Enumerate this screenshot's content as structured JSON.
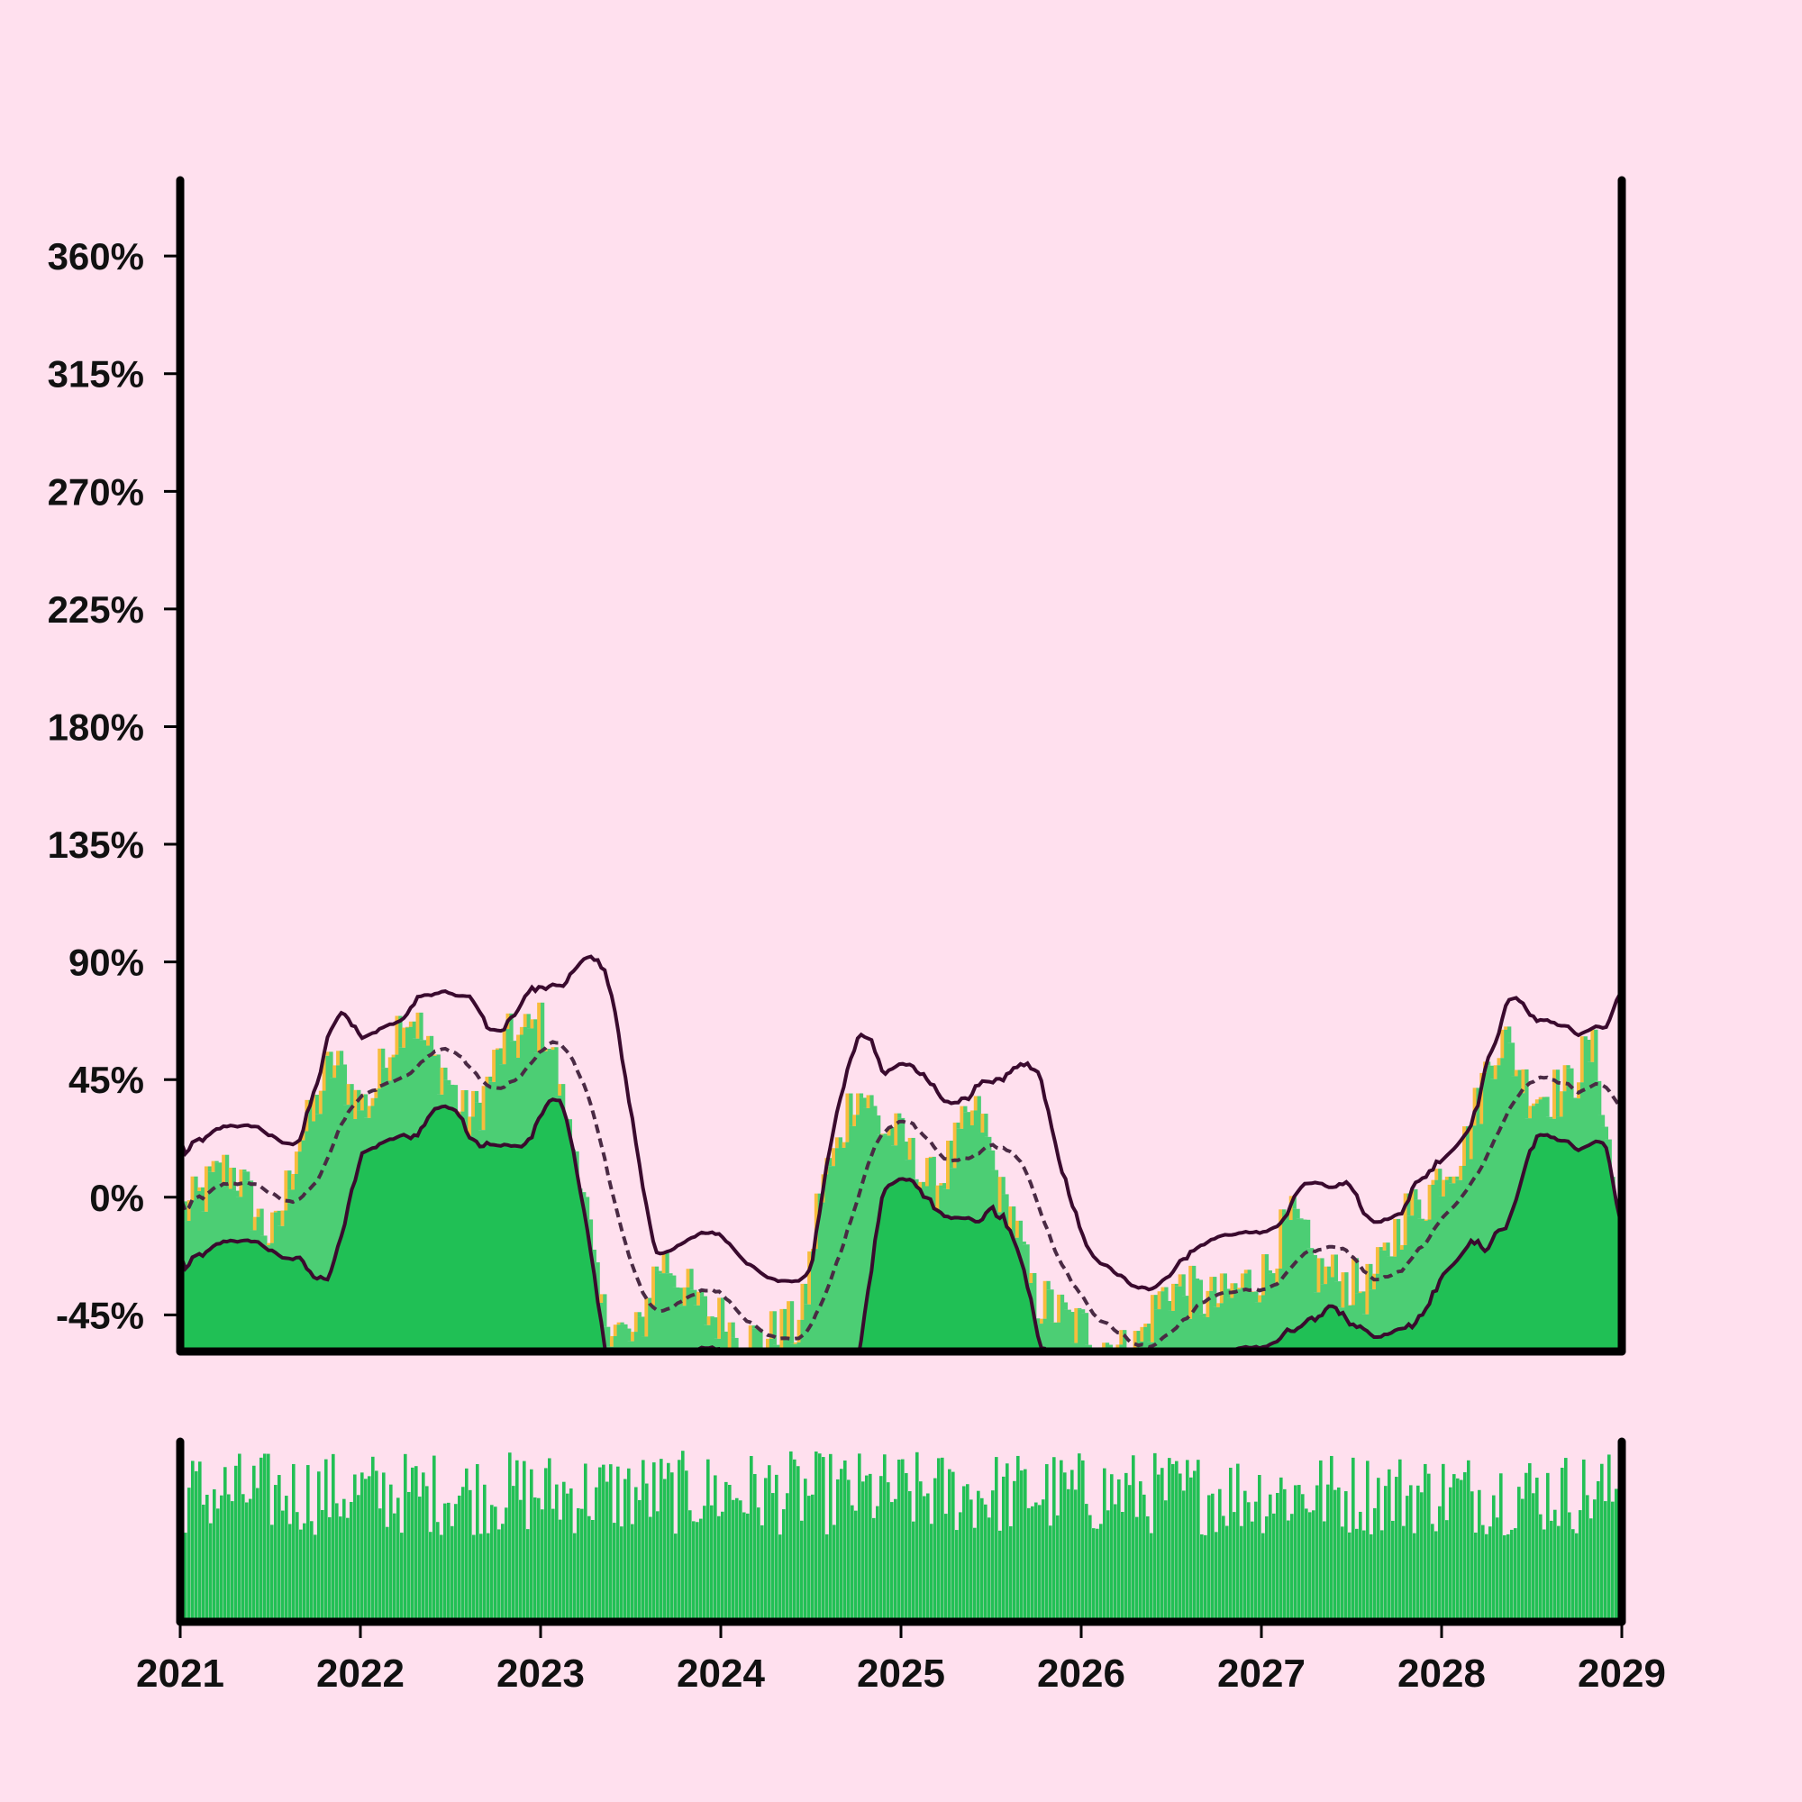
{
  "colors": {
    "background": "#ffe0ee",
    "frame": "#000000",
    "candle_up": "#f7bc3c",
    "candle_down": "#4cce74",
    "band": "#20c055",
    "band_line": "#3a0a2e",
    "mid_line": "#4a2a44",
    "volume": "#22c055"
  },
  "chart_data": [
    {
      "type": "candlestick",
      "title": "",
      "xlabel": "",
      "ylabel": "",
      "x_range": [
        "2021-01",
        "2029-01"
      ],
      "ylim": [
        -59,
        389
      ],
      "y_ticks": [
        {
          "value": 360,
          "label": "360%"
        },
        {
          "value": 315,
          "label": "315%"
        },
        {
          "value": 270,
          "label": "270%"
        },
        {
          "value": 225,
          "label": "225%"
        },
        {
          "value": 180,
          "label": "180%"
        },
        {
          "value": 135,
          "label": "135%"
        },
        {
          "value": 90,
          "label": "90%"
        },
        {
          "value": 45,
          "label": "45%"
        },
        {
          "value": 0,
          "label": "0%"
        },
        {
          "value": -45,
          "label": "-45%"
        }
      ],
      "close_anchors": [
        {
          "t": "2021-01",
          "v": -5
        },
        {
          "t": "2021-04",
          "v": 10
        },
        {
          "t": "2021-07",
          "v": -15
        },
        {
          "t": "2021-09",
          "v": 25
        },
        {
          "t": "2021-11",
          "v": 50
        },
        {
          "t": "2022-01",
          "v": 35
        },
        {
          "t": "2022-04",
          "v": 70
        },
        {
          "t": "2022-06",
          "v": 50
        },
        {
          "t": "2022-08",
          "v": 30
        },
        {
          "t": "2022-11",
          "v": 60
        },
        {
          "t": "2023-01",
          "v": 65
        },
        {
          "t": "2023-03",
          "v": 20
        },
        {
          "t": "2023-05",
          "v": -45
        },
        {
          "t": "2023-07",
          "v": -55
        },
        {
          "t": "2023-09",
          "v": -25
        },
        {
          "t": "2023-12",
          "v": -45
        },
        {
          "t": "2024-03",
          "v": -55
        },
        {
          "t": "2024-06",
          "v": -50
        },
        {
          "t": "2024-08",
          "v": 10
        },
        {
          "t": "2024-10",
          "v": 40
        },
        {
          "t": "2024-12",
          "v": 25
        },
        {
          "t": "2025-03",
          "v": 5
        },
        {
          "t": "2025-06",
          "v": 30
        },
        {
          "t": "2025-08",
          "v": -5
        },
        {
          "t": "2025-10",
          "v": -40
        },
        {
          "t": "2026-01",
          "v": -50
        },
        {
          "t": "2026-04",
          "v": -60
        },
        {
          "t": "2026-07",
          "v": -35
        },
        {
          "t": "2026-10",
          "v": -40
        },
        {
          "t": "2027-01",
          "v": -30
        },
        {
          "t": "2027-03",
          "v": -10
        },
        {
          "t": "2027-05",
          "v": -30
        },
        {
          "t": "2027-08",
          "v": -35
        },
        {
          "t": "2027-11",
          "v": -5
        },
        {
          "t": "2028-02",
          "v": 15
        },
        {
          "t": "2028-05",
          "v": 60
        },
        {
          "t": "2028-07",
          "v": 40
        },
        {
          "t": "2028-09",
          "v": 40
        },
        {
          "t": "2028-11",
          "v": 55
        },
        {
          "t": "2029-01",
          "v": -10
        }
      ],
      "band": {
        "window_weeks": 20,
        "width_multiplier": 2
      }
    },
    {
      "type": "bar",
      "title": "",
      "series": [
        {
          "values_range": [
            0.1,
            1.0
          ]
        }
      ],
      "x_ticks": [
        "2021",
        "2022",
        "2023",
        "2024",
        "2025",
        "2026",
        "2027",
        "2028",
        "2029"
      ]
    }
  ]
}
